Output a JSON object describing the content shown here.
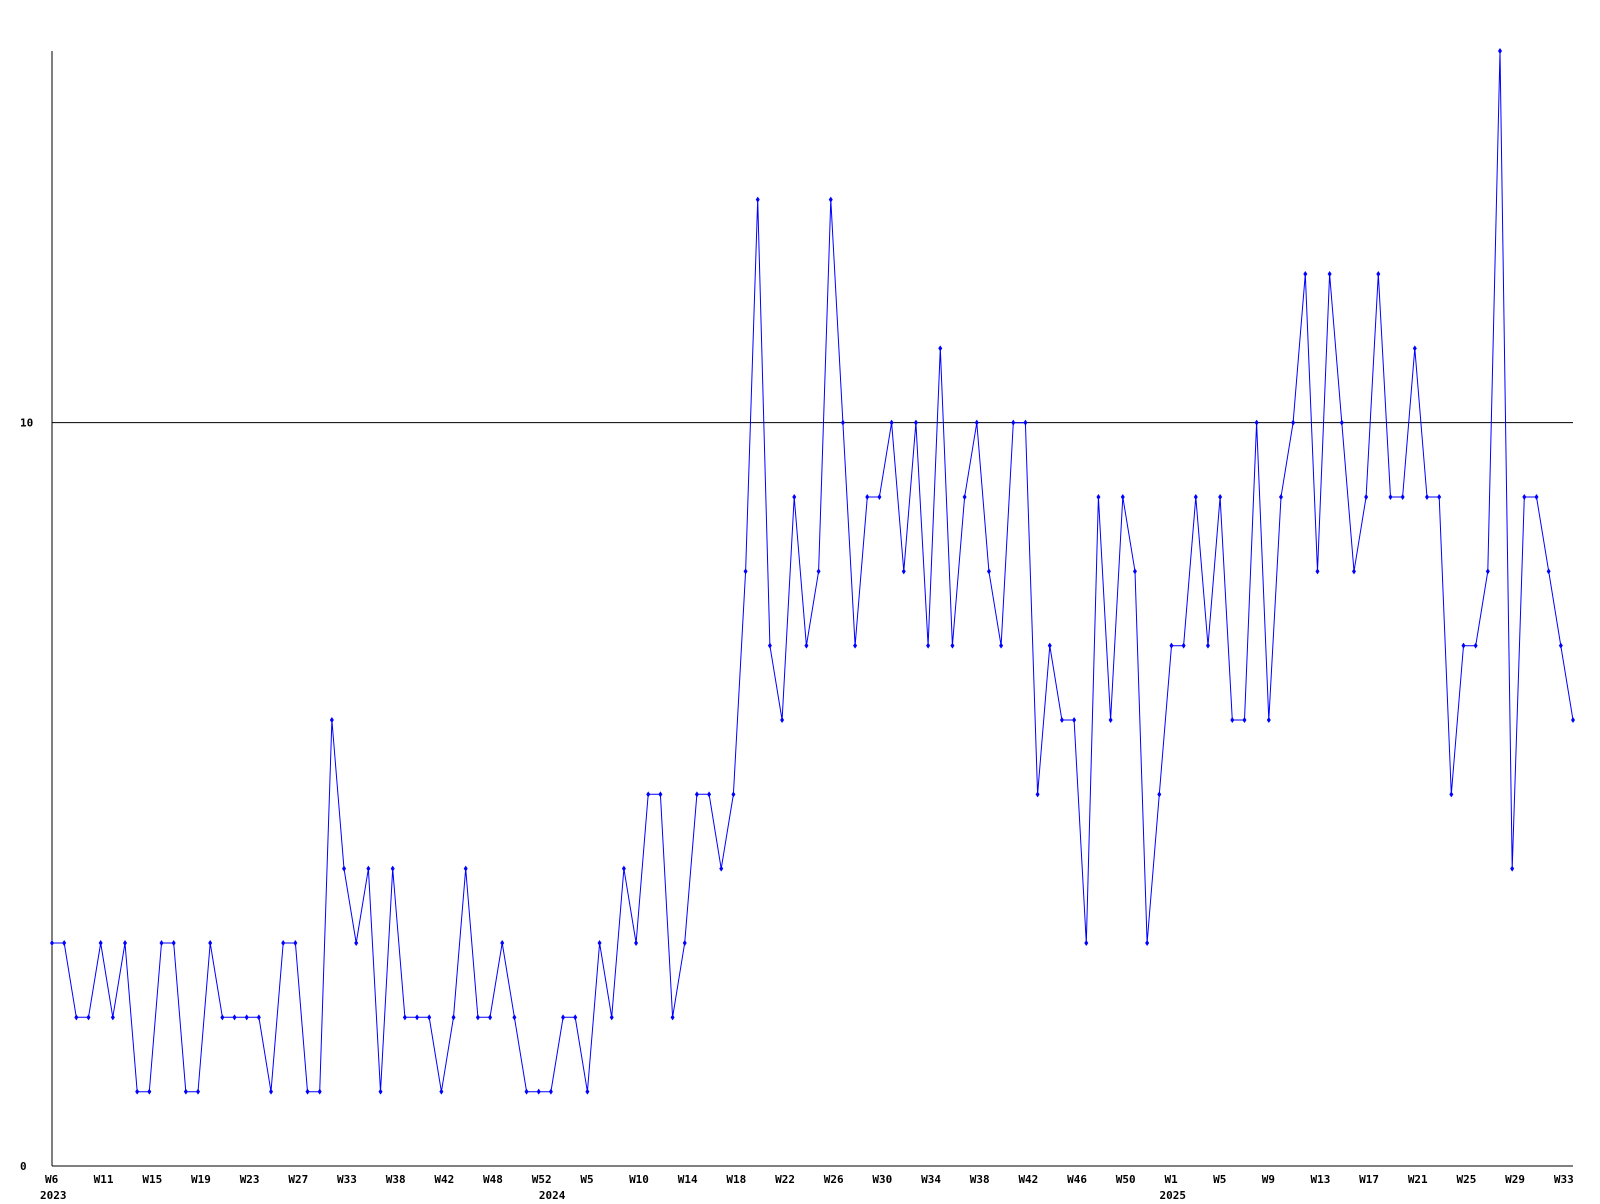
{
  "chart_data": {
    "type": "line",
    "categories": [
      "W6",
      null,
      null,
      null,
      "W11",
      null,
      null,
      null,
      "W15",
      null,
      null,
      null,
      "W19",
      null,
      null,
      null,
      "W23",
      null,
      null,
      null,
      "W27",
      null,
      null,
      null,
      "W33",
      null,
      null,
      null,
      "W38",
      null,
      null,
      null,
      "W42",
      null,
      null,
      null,
      "W48",
      null,
      null,
      null,
      "W52",
      null,
      null,
      null,
      "W5",
      null,
      null,
      null,
      "W10",
      null,
      null,
      null,
      "W14",
      null,
      null,
      null,
      "W18",
      null,
      null,
      null,
      "W22",
      null,
      null,
      null,
      "W26",
      null,
      null,
      null,
      "W30",
      null,
      null,
      null,
      "W34",
      null,
      null,
      null,
      "W38",
      null,
      null,
      null,
      "W42",
      null,
      null,
      null,
      "W46",
      null,
      null,
      null,
      "W50",
      null,
      null,
      null,
      "W1",
      null,
      null,
      null,
      "W5",
      null,
      null,
      null,
      "W9",
      null,
      null,
      null,
      "W13",
      null,
      null,
      null,
      "W17",
      null,
      null,
      null,
      "W21",
      null,
      null,
      null,
      "W25",
      null,
      null,
      null,
      "W29",
      null,
      null,
      null,
      "W33",
      null
    ],
    "category_years": [
      "2023",
      null,
      null,
      null,
      null,
      null,
      null,
      null,
      null,
      null,
      null,
      null,
      null,
      null,
      null,
      null,
      null,
      null,
      null,
      null,
      null,
      null,
      null,
      null,
      null,
      null,
      null,
      null,
      null,
      null,
      null,
      null,
      null,
      null,
      null,
      null,
      null,
      null,
      null,
      null,
      null,
      "2024",
      null,
      null,
      null,
      null,
      null,
      null,
      null,
      null,
      null,
      null,
      null,
      null,
      null,
      null,
      null,
      null,
      null,
      null,
      null,
      null,
      null,
      null,
      null,
      null,
      null,
      null,
      null,
      null,
      null,
      null,
      null,
      null,
      null,
      null,
      null,
      null,
      null,
      null,
      null,
      null,
      null,
      null,
      null,
      null,
      null,
      null,
      null,
      null,
      null,
      null,
      "2025",
      null,
      null,
      null,
      null,
      null,
      null,
      null,
      null,
      null,
      null,
      null,
      null,
      null,
      null,
      null,
      null,
      null,
      null,
      null,
      null,
      null,
      null,
      null,
      null,
      null,
      null,
      null,
      null,
      null,
      null,
      null,
      null,
      null,
      null,
      null,
      null,
      null
    ],
    "series": [
      {
        "color": "#0000ff",
        "values": [
          3,
          3,
          2,
          2,
          3,
          2,
          3,
          1,
          1,
          3,
          3,
          1,
          1,
          3,
          2,
          2,
          2,
          2,
          1,
          3,
          3,
          1,
          1,
          6,
          4,
          3,
          4,
          1,
          4,
          2,
          2,
          2,
          1,
          2,
          4,
          2,
          2,
          3,
          2,
          1,
          1,
          1,
          2,
          2,
          1,
          3,
          2,
          4,
          3,
          5,
          5,
          2,
          3,
          5,
          5,
          4,
          5,
          8,
          13,
          7,
          6,
          9,
          7,
          8,
          13,
          10,
          7,
          9,
          9,
          10,
          8,
          10,
          7,
          11,
          7,
          9,
          10,
          8,
          7,
          10,
          10,
          5,
          7,
          6,
          6,
          3,
          9,
          6,
          9,
          8,
          3,
          5,
          7,
          7,
          9,
          7,
          9,
          6,
          6,
          10,
          6,
          9,
          10,
          12,
          8,
          12,
          10,
          8,
          9,
          12,
          9,
          9,
          11,
          9,
          9,
          5,
          7,
          7,
          8,
          15,
          4,
          9,
          9,
          8,
          7,
          6
        ]
      }
    ],
    "ylim": [
      0,
      15
    ],
    "yticks": [
      0,
      10
    ],
    "grid": true
  }
}
